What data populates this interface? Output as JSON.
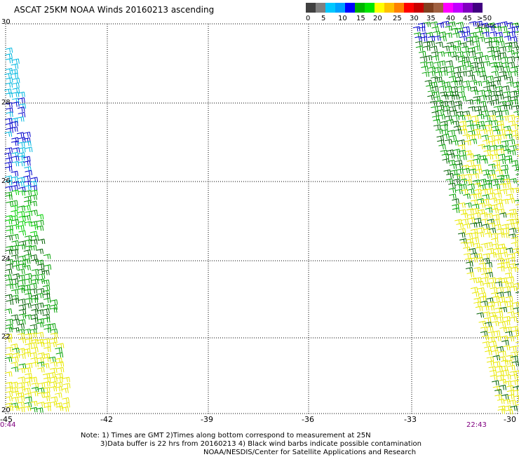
{
  "title": "ASCAT 25KM NOAA Winds 20160213 ascending",
  "color_scale": {
    "colors": [
      "#404040",
      "#808080",
      "#00c8ff",
      "#00a0ff",
      "#0000ff",
      "#00b400",
      "#00e600",
      "#ffff00",
      "#ffc000",
      "#ff8000",
      "#ff0000",
      "#c80000",
      "#804020",
      "#a06040",
      "#ff00ff",
      "#c000ff",
      "#8000c0",
      "#400080"
    ],
    "labels": [
      "0",
      "5",
      "10",
      "15",
      "20",
      "25",
      "30",
      "35",
      "40",
      "45",
      ">50 knots"
    ]
  },
  "axes": {
    "lat_labels": [
      "30",
      "28",
      "26",
      "24",
      "22",
      "20"
    ],
    "lon_labels": [
      "-45",
      "-42",
      "-39",
      "-36",
      "-33",
      "-30"
    ]
  },
  "times": {
    "left": "0:44",
    "right": "22:43"
  },
  "notes": [
    "Note: 1) Times are GMT 2)Times along bottom correspond to measurement at 25N",
    "3)Data buffer is 22 hrs from 20160213 4) Black wind barbs indicate possible contamination",
    "NOAA/NESDIS/Center for Satellite Applications and Research"
  ],
  "wind_colors": {
    "yellow": "#e8e800",
    "green": "#00a000",
    "dark_green": "#006000",
    "light_green": "#00d000",
    "blue": "#0000cc",
    "cyan": "#00b8e0"
  }
}
